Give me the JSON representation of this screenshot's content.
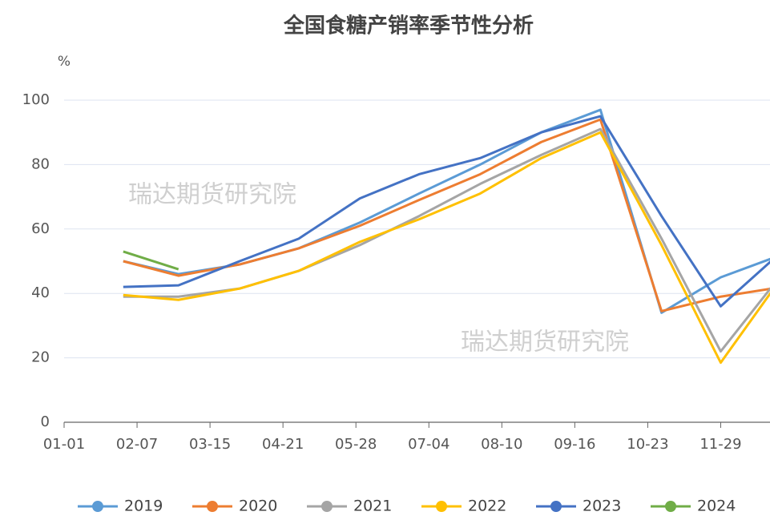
{
  "chart_data": {
    "type": "line",
    "title": "全国食糖产销率季节性分析",
    "y_unit": "%",
    "watermark": [
      "瑞达期货研究院",
      "瑞达期货研究院"
    ],
    "x": [
      30,
      58,
      89,
      119,
      150,
      180,
      211,
      242,
      272,
      303,
      333,
      364
    ],
    "xlim": [
      0,
      358
    ],
    "xticks": [
      {
        "value": 0,
        "label": "01-01"
      },
      {
        "value": 37,
        "label": "02-07"
      },
      {
        "value": 74,
        "label": "03-15"
      },
      {
        "value": 111,
        "label": "04-21"
      },
      {
        "value": 148,
        "label": "05-28"
      },
      {
        "value": 185,
        "label": "07-04"
      },
      {
        "value": 222,
        "label": "08-10"
      },
      {
        "value": 259,
        "label": "09-16"
      },
      {
        "value": 296,
        "label": "10-23"
      },
      {
        "value": 333,
        "label": "11-29"
      }
    ],
    "ylim": [
      0,
      100
    ],
    "yticks": [
      0,
      20,
      40,
      60,
      80,
      100
    ],
    "grid": true,
    "series": [
      {
        "name": "2019",
        "color": "#5b9bd5",
        "values": [
          50,
          46,
          49,
          54,
          62,
          71,
          80,
          90,
          97,
          34,
          45,
          52
        ]
      },
      {
        "name": "2020",
        "color": "#ed7d31",
        "values": [
          50,
          45.5,
          49,
          54,
          61,
          69,
          77,
          87,
          94,
          34.5,
          39,
          42
        ]
      },
      {
        "name": "2021",
        "color": "#a5a5a5",
        "values": [
          39,
          39,
          41.5,
          47,
          55,
          64,
          74,
          83,
          91,
          57,
          22,
          46
        ]
      },
      {
        "name": "2022",
        "color": "#ffc000",
        "values": [
          39.5,
          38,
          41.5,
          47,
          56,
          63,
          71,
          82,
          90,
          55,
          18.5,
          45
        ]
      },
      {
        "name": "2023",
        "color": "#4472c4",
        "values": [
          42,
          42.5,
          50,
          57,
          69.5,
          77,
          82,
          90,
          95,
          64,
          36,
          53
        ]
      },
      {
        "name": "2024",
        "color": "#70ad47",
        "values": [
          53,
          47.5,
          null,
          null,
          null,
          null,
          null,
          null,
          null,
          null,
          null,
          null
        ]
      }
    ]
  }
}
